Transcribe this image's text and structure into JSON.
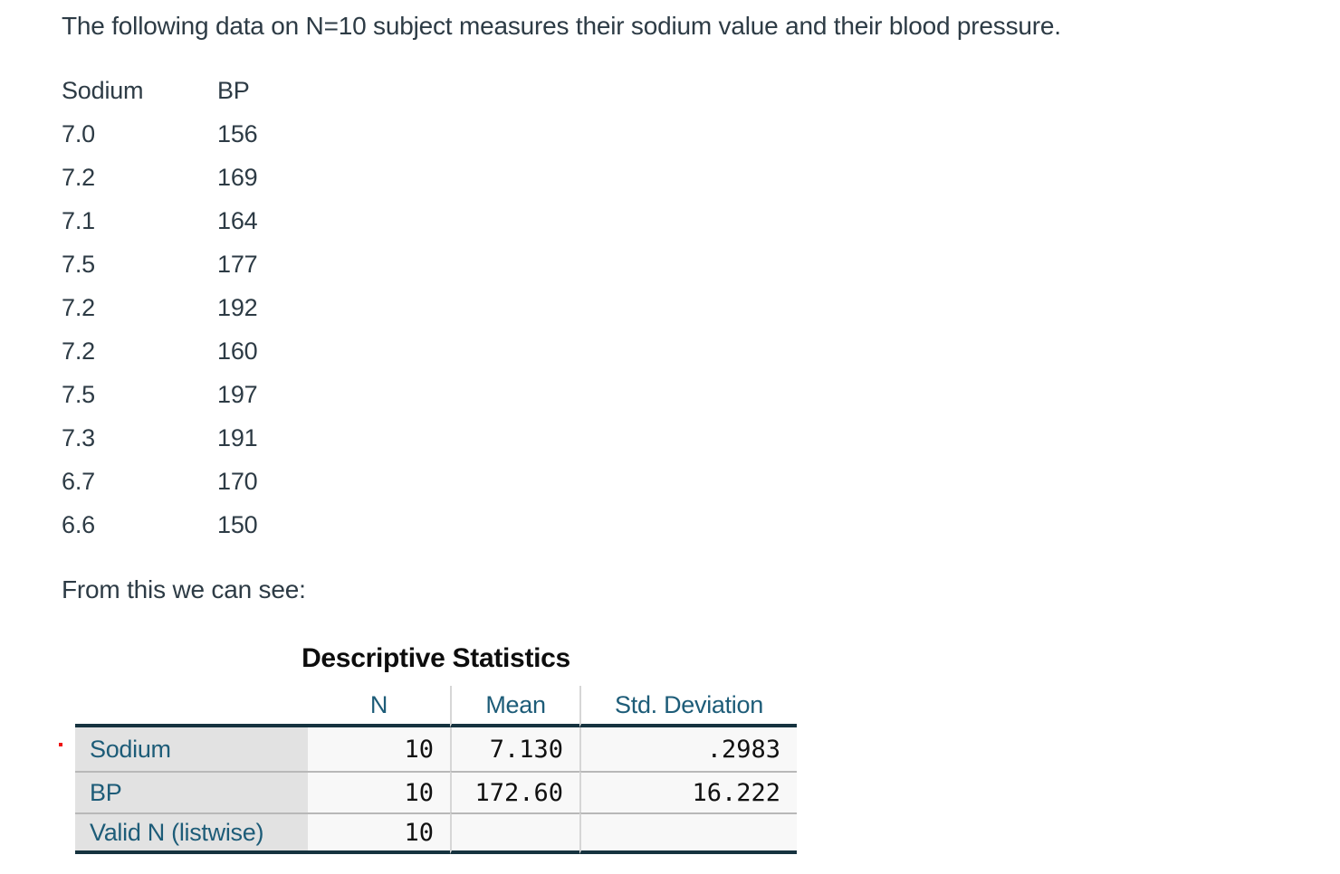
{
  "intro": {
    "text": "The following data on N=10 subject measures their sodium value and their blood pressure."
  },
  "data_table": {
    "headers": [
      "Sodium",
      "BP"
    ],
    "rows": [
      [
        "7.0",
        "156"
      ],
      [
        "7.2",
        "169"
      ],
      [
        "7.1",
        "164"
      ],
      [
        "7.5",
        "177"
      ],
      [
        "7.2",
        "192"
      ],
      [
        "7.2",
        "160"
      ],
      [
        "7.5",
        "197"
      ],
      [
        "7.3",
        "191"
      ],
      [
        "6.7",
        "170"
      ],
      [
        "6.6",
        "150"
      ]
    ]
  },
  "leadout": {
    "text": "From this we can see:"
  },
  "stats_table": {
    "title": "Descriptive Statistics",
    "columns": [
      "",
      "N",
      "Mean",
      "Std. Deviation"
    ],
    "rows": [
      {
        "label": "Sodium",
        "n": "10",
        "mean": "7.130",
        "std": ".2983"
      },
      {
        "label": "BP",
        "n": "10",
        "mean": "172.60",
        "std": "16.222"
      },
      {
        "label": "Valid N (listwise)",
        "n": "10",
        "mean": "",
        "std": ""
      }
    ]
  },
  "colors": {
    "body_text": "#2d3b45",
    "table_accent_teal": "#1d5c78",
    "table_rule_dark": "#16333f",
    "label_column_bg": "#e2e2e2",
    "red_marker": "#ee1111"
  }
}
